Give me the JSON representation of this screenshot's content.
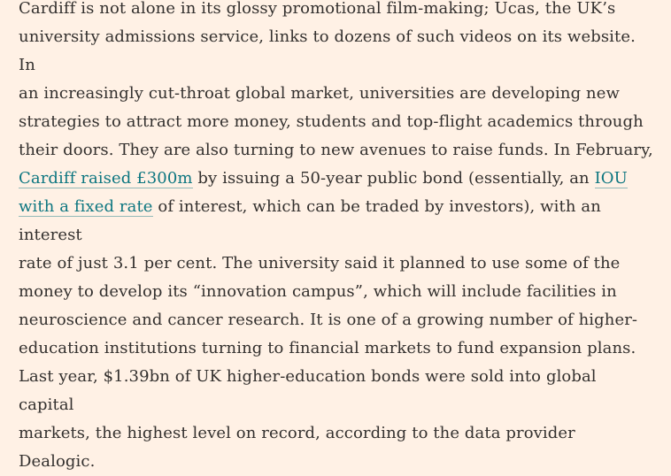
{
  "article": {
    "lines": [
      "Cardiff is not alone in its glossy promotional film-making; Ucas, the UK’s",
      "university admissions service, links to dozens of such videos on its website. In",
      "an increasingly cut-throat global market, universities are developing new",
      "strategies to attract more money, students and top-flight academics through",
      "their doors. They are also turning to new avenues to raise funds. In February,"
    ],
    "line6_link": "Cardiff raised £300m",
    "line6_text": " by issuing a 50-year public bond (essentially, an ",
    "line6_link2": "IOU",
    "line7_link": "with a fixed rate",
    "line7_text": " of interest, which can be traded by investors), with an interest",
    "lines_after": [
      "rate of just 3.1 per cent. The university said it planned to use some of the",
      "money to develop its “innovation campus”, which will include facilities in",
      "neuroscience and cancer research. It is one of a growing number of higher-",
      "education institutions turning to financial markets to fund expansion plans.",
      "Last year, $1.39bn of UK higher-education bonds were sold into global capital",
      "markets, the highest level on record, according to the data provider Dealogic."
    ]
  },
  "colors": {
    "background": "#fff1e5",
    "text": "#33302e",
    "link": "#0d7680"
  }
}
